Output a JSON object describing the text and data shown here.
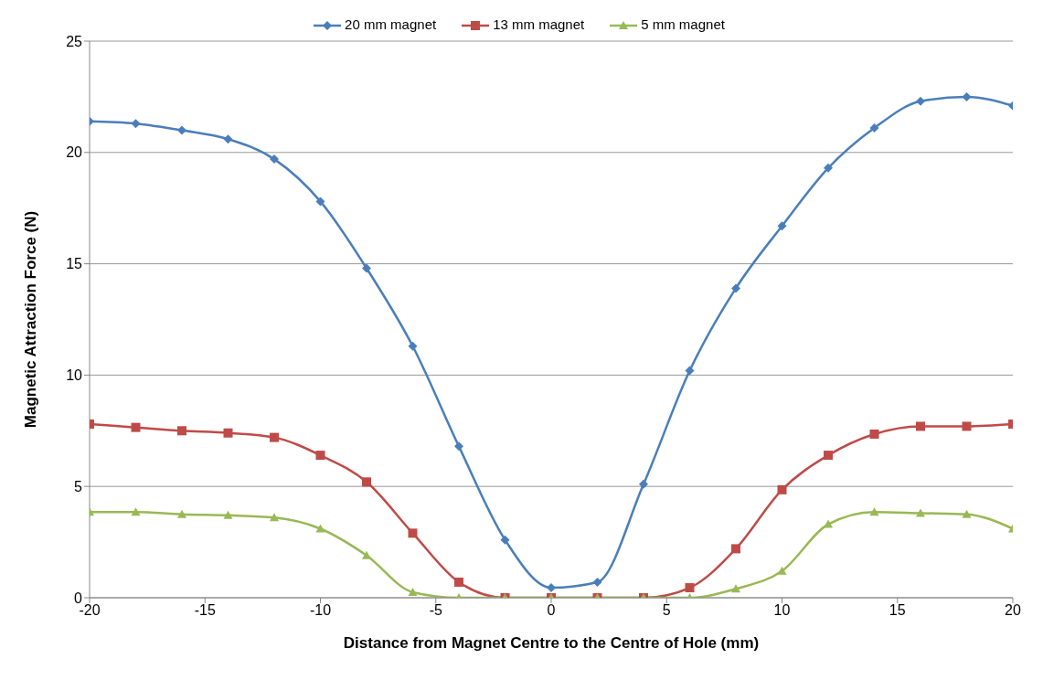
{
  "chart_data": {
    "type": "line",
    "xlabel": "Distance from Magnet Centre to the Centre of Hole (mm)",
    "ylabel": "Magnetic Attraction Force (N)",
    "x": [
      -20,
      -18,
      -16,
      -14,
      -12,
      -10,
      -8,
      -6,
      -4,
      -2,
      0,
      2,
      4,
      6,
      8,
      10,
      12,
      14,
      16,
      18,
      20
    ],
    "series": [
      {
        "name": "20 mm magnet",
        "color": "#4a7ebb",
        "marker": "diamond",
        "values": [
          21.4,
          21.3,
          21.0,
          20.6,
          19.7,
          17.8,
          14.8,
          11.3,
          6.8,
          2.6,
          0.45,
          0.7,
          5.1,
          10.2,
          13.9,
          16.7,
          19.3,
          21.1,
          22.3,
          22.5,
          22.1
        ]
      },
      {
        "name": "13 mm magnet",
        "color": "#be4b48",
        "marker": "square",
        "values": [
          7.8,
          7.65,
          7.5,
          7.4,
          7.2,
          6.4,
          5.2,
          2.9,
          0.7,
          0,
          0,
          0,
          0,
          0.45,
          2.2,
          4.85,
          6.4,
          7.35,
          7.7,
          7.7,
          7.8
        ]
      },
      {
        "name": "5 mm magnet",
        "color": "#98b954",
        "marker": "triangle",
        "values": [
          3.85,
          3.85,
          3.75,
          3.7,
          3.6,
          3.1,
          1.9,
          0.25,
          0,
          0,
          0,
          0,
          0,
          0,
          0.4,
          1.2,
          3.3,
          3.85,
          3.8,
          3.75,
          3.1
        ]
      }
    ],
    "xlim": [
      -20,
      20
    ],
    "xticks": [
      -20,
      -15,
      -10,
      -5,
      0,
      5,
      10,
      15,
      20
    ],
    "ylim": [
      0,
      25
    ],
    "yticks": [
      0,
      5,
      10,
      15,
      20,
      25
    ],
    "grid": "y",
    "legend": "top",
    "line_style": "solid"
  }
}
